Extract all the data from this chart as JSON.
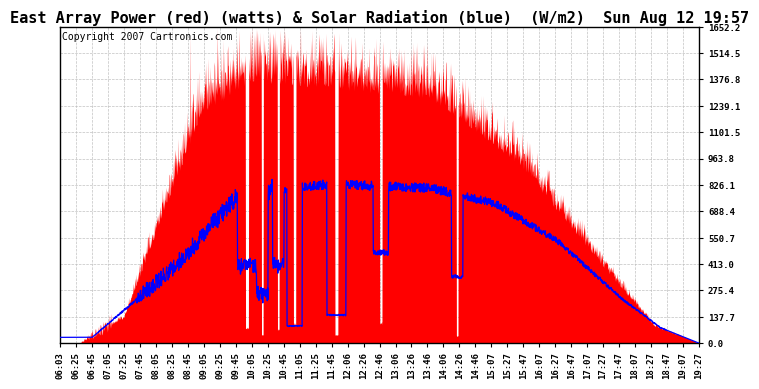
{
  "title": "East Array Power (red) (watts) & Solar Radiation (blue)  (W/m2)  Sun Aug 12 19:57",
  "copyright": "Copyright 2007 Cartronics.com",
  "ylabel_right_ticks": [
    0.0,
    137.7,
    275.4,
    413.0,
    550.7,
    688.4,
    826.1,
    963.8,
    1101.5,
    1239.1,
    1376.8,
    1514.5,
    1652.2
  ],
  "ylim": [
    0,
    1652.2
  ],
  "background_color": "#ffffff",
  "plot_bg_color": "#ffffff",
  "grid_color": "#bbbbbb",
  "red_color": "#ff0000",
  "blue_color": "#0000ff",
  "title_fontsize": 11,
  "copyright_fontsize": 7,
  "tick_fontsize": 6.5,
  "xtick_labels": [
    "06:03",
    "06:25",
    "06:45",
    "07:05",
    "07:25",
    "07:45",
    "08:05",
    "08:25",
    "08:45",
    "09:05",
    "09:25",
    "09:45",
    "10:05",
    "10:25",
    "10:45",
    "11:05",
    "11:25",
    "11:45",
    "12:06",
    "12:26",
    "12:46",
    "13:06",
    "13:26",
    "13:46",
    "14:06",
    "14:26",
    "14:46",
    "15:07",
    "15:27",
    "15:47",
    "16:07",
    "16:27",
    "16:47",
    "17:07",
    "17:27",
    "17:47",
    "18:07",
    "18:27",
    "18:47",
    "19:07",
    "19:27"
  ],
  "n_hi": 2000,
  "cloud_gap_positions": [
    0.29,
    0.315,
    0.34,
    0.365,
    0.43,
    0.5,
    0.62
  ],
  "cloud_gap_widths": [
    0.005,
    0.003,
    0.003,
    0.004,
    0.005,
    0.004,
    0.003
  ]
}
